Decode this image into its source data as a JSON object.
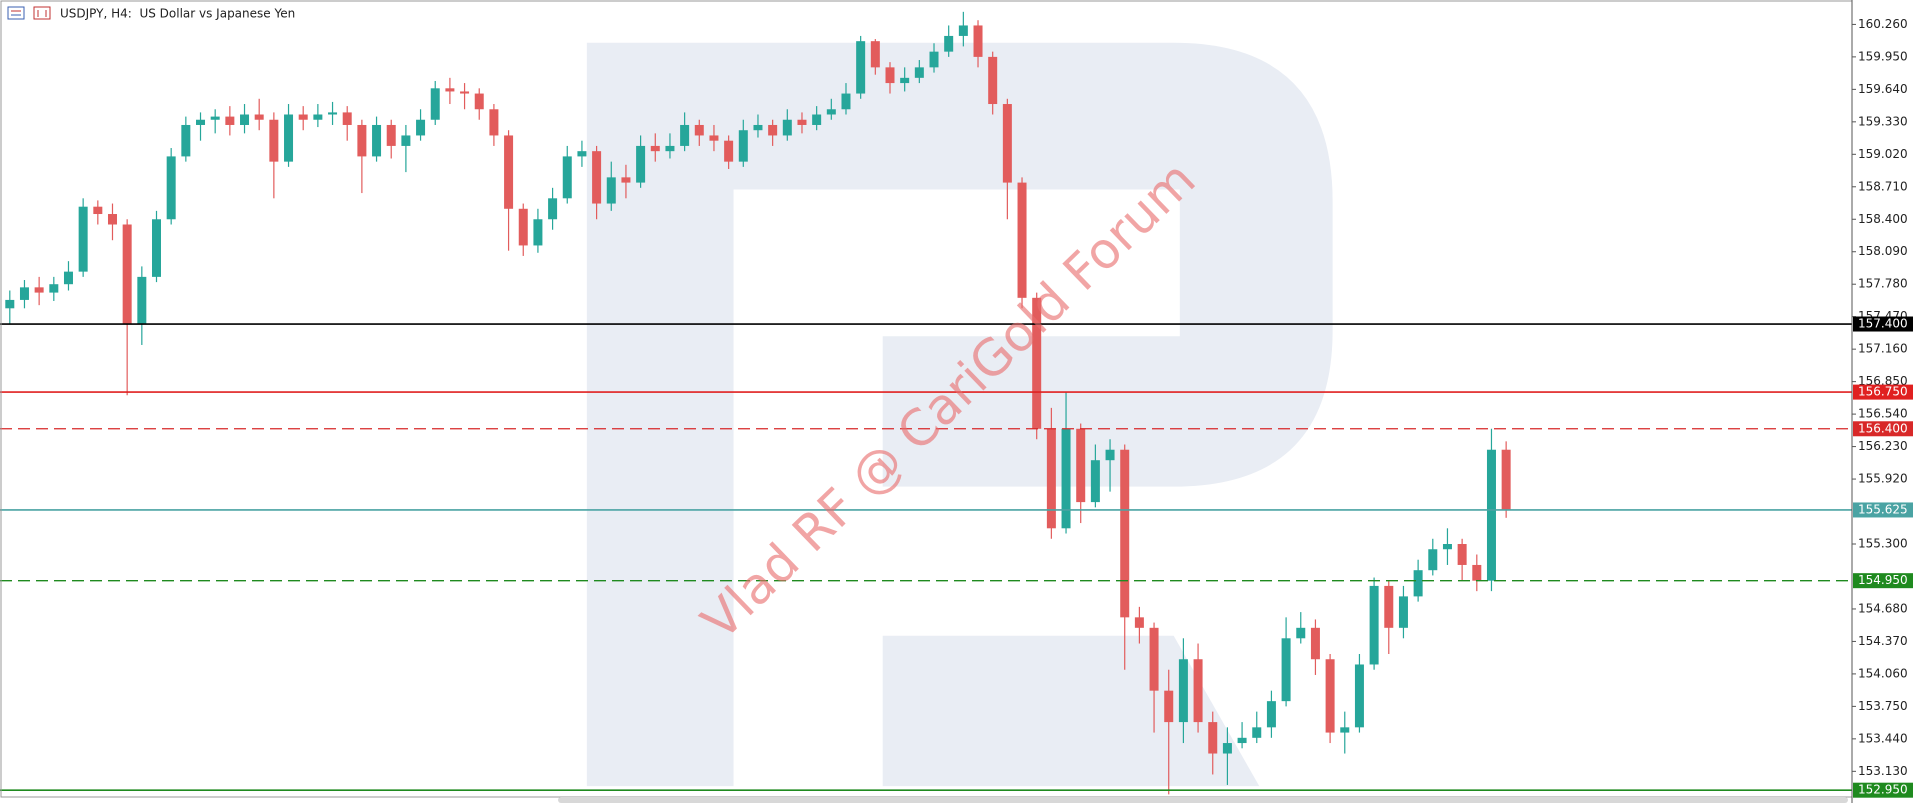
{
  "chart_data": {
    "type": "candlestick",
    "title": "USDJPY, H4:  US Dollar vs Japanese Yen",
    "watermark": "Vlad RF @ CariGold Forum",
    "up_color": "#26a69a",
    "down_color": "#e25c5c",
    "ylim": [
      152.885,
      160.493
    ],
    "yticks": [
      {
        "value": 160.26,
        "label": "160.260"
      },
      {
        "value": 159.95,
        "label": "159.950"
      },
      {
        "value": 159.64,
        "label": "159.640"
      },
      {
        "value": 159.33,
        "label": "159.330"
      },
      {
        "value": 159.02,
        "label": "159.020"
      },
      {
        "value": 158.71,
        "label": "158.710"
      },
      {
        "value": 158.4,
        "label": "158.400"
      },
      {
        "value": 158.09,
        "label": "158.090"
      },
      {
        "value": 157.78,
        "label": "157.780"
      },
      {
        "value": 157.47,
        "label": "157.470"
      },
      {
        "value": 157.16,
        "label": "157.160"
      },
      {
        "value": 156.85,
        "label": "156.850"
      },
      {
        "value": 156.54,
        "label": "156.540"
      },
      {
        "value": 156.23,
        "label": "156.230"
      },
      {
        "value": 155.92,
        "label": "155.920"
      },
      {
        "value": 155.3,
        "label": "155.300"
      },
      {
        "value": 154.68,
        "label": "154.680"
      },
      {
        "value": 154.37,
        "label": "154.370"
      },
      {
        "value": 154.06,
        "label": "154.060"
      },
      {
        "value": 153.75,
        "label": "153.750"
      },
      {
        "value": 153.44,
        "label": "153.440"
      },
      {
        "value": 153.13,
        "label": "153.130"
      }
    ],
    "levels": [
      {
        "value": 157.4,
        "label": "157.400",
        "color": "#000000",
        "dashed": false
      },
      {
        "value": 156.75,
        "label": "156.750",
        "color": "#e02020",
        "dashed": false
      },
      {
        "value": 156.4,
        "label": "156.400",
        "color": "#d82828",
        "dashed": true
      },
      {
        "value": 155.625,
        "label": "155.625",
        "color": "#4aa3a3",
        "dashed": false
      },
      {
        "value": 154.95,
        "label": "154.950",
        "color": "#1f8a1f",
        "dashed": true
      },
      {
        "value": 152.95,
        "label": "152.950",
        "color": "#1f8a1f",
        "dashed": false
      }
    ],
    "open": [
      157.55,
      157.63,
      157.75,
      157.7,
      157.78,
      157.9,
      158.52,
      158.45,
      158.35,
      157.4,
      157.85,
      158.4,
      159.0,
      159.3,
      159.35,
      159.38,
      159.3,
      159.4,
      159.35,
      158.95,
      159.4,
      159.35,
      159.4,
      159.42,
      159.3,
      159.0,
      159.3,
      159.1,
      159.2,
      159.35,
      159.65,
      159.62,
      159.6,
      159.45,
      159.2,
      158.5,
      158.15,
      158.4,
      158.6,
      159.0,
      159.05,
      158.55,
      158.8,
      158.75,
      159.1,
      159.05,
      159.1,
      159.3,
      159.2,
      159.15,
      158.95,
      159.25,
      159.3,
      159.2,
      159.35,
      159.3,
      159.4,
      159.45,
      159.6,
      160.1,
      159.85,
      159.7,
      159.75,
      159.85,
      160.0,
      160.15,
      160.25,
      159.95,
      159.5,
      158.75,
      157.65,
      156.4,
      155.45,
      156.4,
      155.7,
      156.1,
      156.2,
      154.6,
      154.5,
      153.9,
      153.6,
      154.2,
      153.6,
      153.3,
      153.4,
      153.45,
      153.55,
      153.8,
      154.4,
      154.5,
      154.2,
      153.5,
      153.55,
      154.15,
      154.9,
      154.5,
      154.8,
      155.05,
      155.25,
      155.3,
      155.1,
      154.95,
      156.2
    ],
    "high": [
      157.72,
      157.82,
      157.85,
      157.85,
      158.0,
      158.6,
      158.58,
      158.55,
      158.4,
      157.95,
      158.48,
      159.08,
      159.38,
      159.42,
      159.45,
      159.48,
      159.5,
      159.55,
      159.42,
      159.5,
      159.48,
      159.5,
      159.52,
      159.48,
      159.35,
      159.38,
      159.35,
      159.3,
      159.45,
      159.72,
      159.75,
      159.7,
      159.65,
      159.5,
      159.25,
      158.55,
      158.5,
      158.7,
      159.1,
      159.15,
      159.1,
      158.95,
      158.92,
      159.2,
      159.22,
      159.22,
      159.42,
      159.35,
      159.3,
      159.2,
      159.35,
      159.4,
      159.35,
      159.45,
      159.42,
      159.48,
      159.55,
      159.7,
      160.15,
      160.12,
      159.9,
      159.85,
      159.92,
      160.08,
      160.25,
      160.38,
      160.3,
      160.0,
      159.55,
      158.8,
      157.7,
      156.6,
      156.75,
      156.45,
      156.25,
      156.3,
      156.25,
      154.7,
      154.55,
      154.1,
      154.4,
      154.35,
      153.7,
      153.55,
      153.6,
      153.7,
      153.9,
      154.6,
      154.65,
      154.58,
      154.25,
      153.7,
      154.25,
      154.98,
      154.95,
      154.9,
      155.15,
      155.35,
      155.45,
      155.35,
      155.2,
      156.4,
      156.28
    ],
    "low": [
      157.4,
      157.55,
      157.58,
      157.62,
      157.72,
      157.85,
      158.35,
      158.2,
      156.72,
      157.2,
      157.8,
      158.35,
      158.95,
      159.15,
      159.22,
      159.2,
      159.22,
      159.25,
      158.6,
      158.9,
      159.25,
      159.28,
      159.3,
      159.15,
      158.65,
      158.95,
      158.98,
      158.85,
      159.15,
      159.3,
      159.5,
      159.45,
      159.35,
      159.1,
      158.1,
      158.05,
      158.08,
      158.3,
      158.55,
      158.9,
      158.4,
      158.48,
      158.6,
      158.7,
      158.95,
      158.98,
      159.05,
      159.1,
      159.05,
      158.88,
      158.9,
      159.18,
      159.1,
      159.15,
      159.22,
      159.25,
      159.35,
      159.4,
      159.55,
      159.78,
      159.6,
      159.62,
      159.7,
      159.8,
      159.95,
      160.05,
      159.85,
      159.4,
      158.4,
      157.55,
      156.3,
      155.35,
      155.4,
      155.5,
      155.65,
      155.8,
      154.1,
      154.35,
      153.5,
      152.91,
      153.4,
      153.5,
      153.1,
      153.0,
      153.35,
      153.4,
      153.45,
      153.75,
      154.35,
      154.05,
      153.4,
      153.3,
      153.5,
      154.1,
      154.25,
      154.4,
      154.75,
      155.0,
      155.1,
      154.95,
      154.85,
      154.85,
      155.55
    ],
    "close": [
      157.63,
      157.75,
      157.7,
      157.78,
      157.9,
      158.52,
      158.45,
      158.35,
      157.4,
      157.85,
      158.4,
      159.0,
      159.3,
      159.35,
      159.38,
      159.3,
      159.4,
      159.35,
      158.95,
      159.4,
      159.35,
      159.4,
      159.42,
      159.3,
      159.0,
      159.3,
      159.1,
      159.2,
      159.35,
      159.65,
      159.62,
      159.6,
      159.45,
      159.2,
      158.5,
      158.15,
      158.4,
      158.6,
      159.0,
      159.05,
      158.55,
      158.8,
      158.75,
      159.1,
      159.05,
      159.1,
      159.3,
      159.2,
      159.15,
      158.95,
      159.25,
      159.3,
      159.2,
      159.35,
      159.3,
      159.4,
      159.45,
      159.6,
      160.1,
      159.85,
      159.7,
      159.75,
      159.85,
      160.0,
      160.15,
      160.25,
      159.95,
      159.5,
      158.75,
      157.65,
      156.4,
      155.45,
      156.4,
      155.7,
      156.1,
      156.2,
      154.6,
      154.5,
      153.9,
      153.6,
      154.2,
      153.6,
      153.3,
      153.4,
      153.45,
      153.55,
      153.8,
      154.4,
      154.5,
      154.2,
      153.5,
      153.55,
      154.15,
      154.9,
      154.5,
      154.8,
      155.05,
      155.25,
      155.3,
      155.1,
      154.95,
      156.2,
      155.63
    ]
  }
}
